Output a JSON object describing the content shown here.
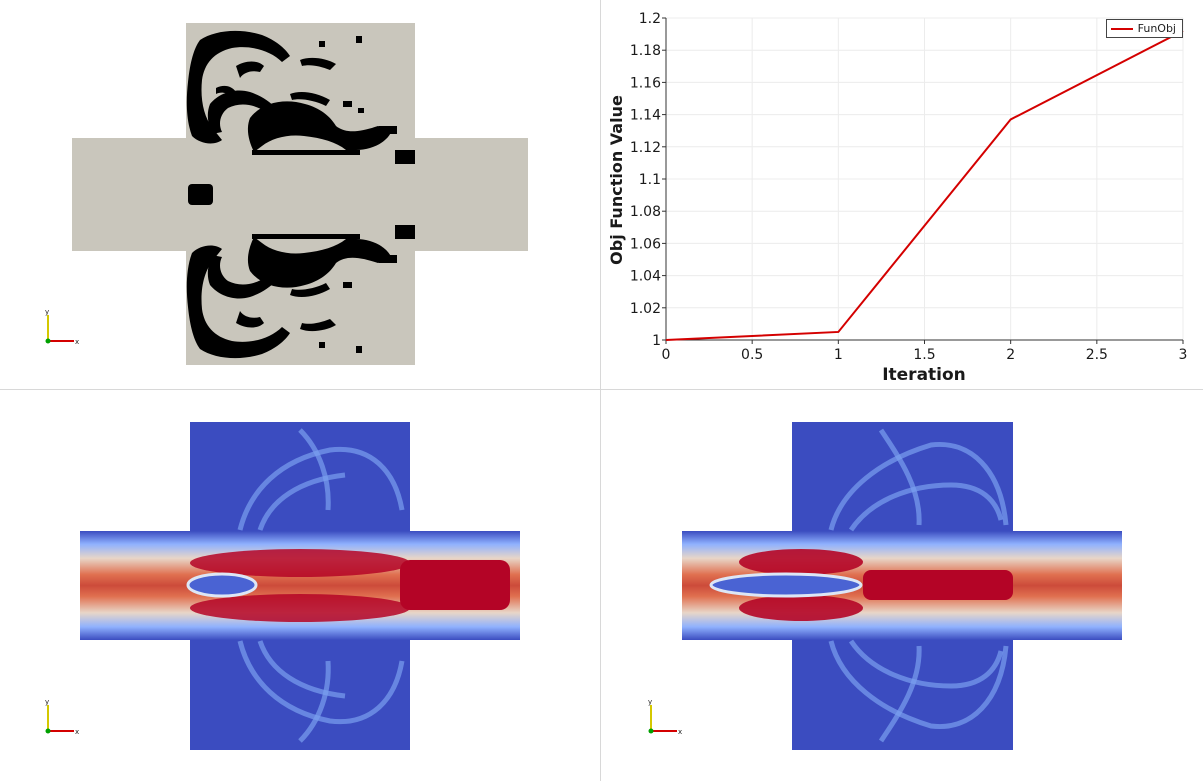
{
  "chart_data": {
    "type": "line",
    "x": [
      0,
      1,
      2,
      3
    ],
    "series": [
      {
        "name": "FunObj",
        "values": [
          1.0,
          1.005,
          1.137,
          1.192
        ]
      }
    ],
    "xlabel": "Iteration",
    "ylabel": "Obj Function Value",
    "xlim": [
      0,
      3
    ],
    "ylim": [
      1,
      1.2
    ],
    "xticks": [
      "0",
      "0.5",
      "1",
      "1.5",
      "2",
      "2.5",
      "3"
    ],
    "yticks": [
      "1",
      "1.02",
      "1.04",
      "1.06",
      "1.08",
      "1.1",
      "1.12",
      "1.14",
      "1.16",
      "1.18",
      "1.2"
    ],
    "grid": true,
    "legend": "top-right",
    "color": "#d40000"
  },
  "views": {
    "top_left": "density-field-black-white",
    "bottom_left": "velocity-field-iteration",
    "bottom_right": "velocity-field-final"
  },
  "axes_triad": {
    "x_label": "x",
    "y_label": "y",
    "x_color": "#d40000",
    "y_color": "#d4c800",
    "z_color": "#00a000"
  },
  "colors": {
    "background": "#ffffff",
    "domain_gray": "#c9c6bc",
    "density_black": "#000000",
    "field_blue": "#3b4cc0",
    "field_red": "#b40426"
  }
}
